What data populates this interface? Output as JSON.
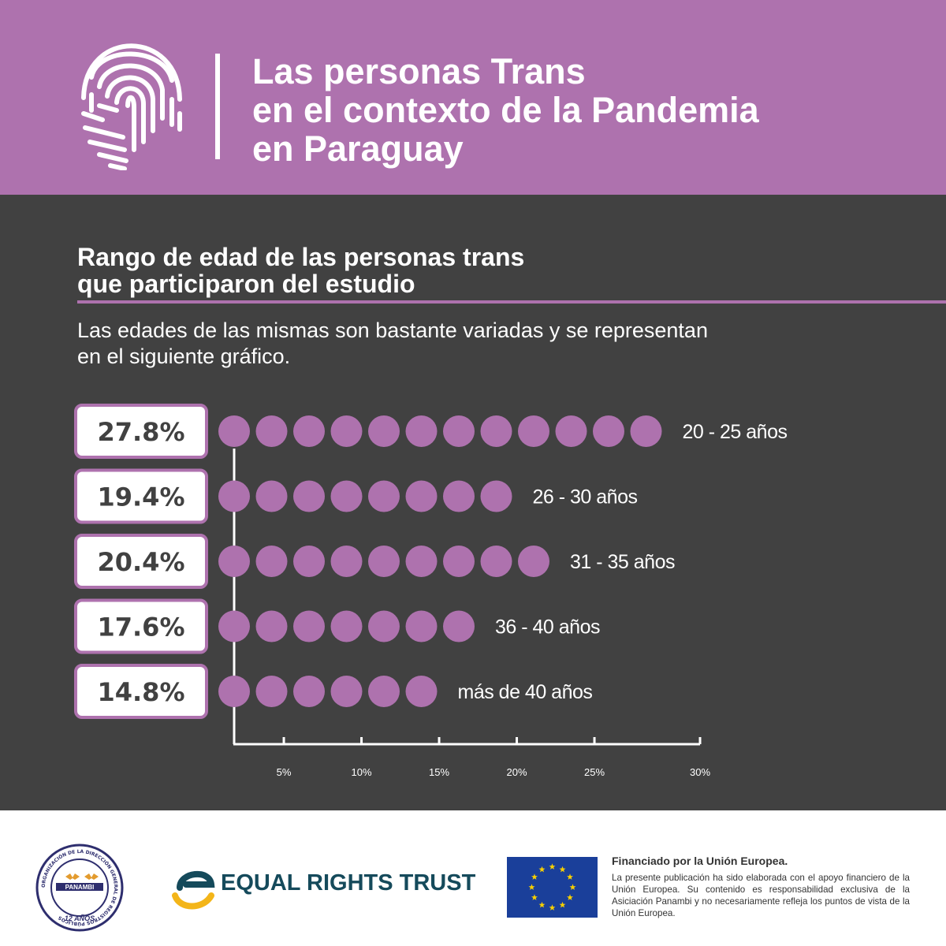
{
  "header": {
    "title_lines": [
      "Las personas Trans",
      "en el contexto de la Pandemia",
      "en Paraguay"
    ]
  },
  "section": {
    "title_lines": [
      "Rango de edad de las personas trans",
      "que participaron del estudio"
    ],
    "intro_lines": [
      "Las edades de las mismas son bastante variadas y se representan",
      "en el siguiente gráfico."
    ]
  },
  "chart_data": {
    "type": "bar",
    "categories": [
      "20 - 25 años",
      "26 - 30 años",
      "31 - 35 años",
      "36 - 40 años",
      "más de 40 años"
    ],
    "values": [
      27.8,
      19.4,
      20.4,
      17.6,
      14.8
    ],
    "value_labels": [
      "27.8%",
      "19.4%",
      "20.4%",
      "17.6%",
      "14.8%"
    ],
    "dot_counts": [
      12,
      8,
      9,
      7,
      6
    ],
    "x_ticks": [
      "5%",
      "10%",
      "15%",
      "20%",
      "25%",
      "30%"
    ],
    "xlim": [
      0,
      30
    ],
    "grid": false,
    "colors": {
      "dot": "#ae72ae",
      "frame": "#ae72ae",
      "axis": "#ffffff",
      "text": "#ffffff"
    }
  },
  "footer": {
    "panambi": {
      "name": "PANAMBI",
      "years": "12 AÑOS",
      "ring_text": "ORGANIZACIÓN DE LA DIRECCIÓN GENERAL DE REGISTROS PÚBLICOS"
    },
    "ert": {
      "name": "EQUAL RIGHTS TRUST"
    },
    "eu": {
      "funded": "Financiado por la Unión Europea.",
      "disclaimer": "La presente publicación ha sido elaborada con el apoyo financiero de la Unión Europea. Su contenido es responsabilidad exclusiva de la Asiciación Panambi y no necesariamente refleja los puntos de vista de la Unión Europea."
    }
  },
  "colors": {
    "brand_purple": "#ae72ae",
    "panel_dark": "#414141",
    "ert_teal": "#154a5b",
    "ert_yellow": "#f3b519",
    "eu_blue": "#1a3f9a",
    "eu_star": "#f8d000"
  }
}
